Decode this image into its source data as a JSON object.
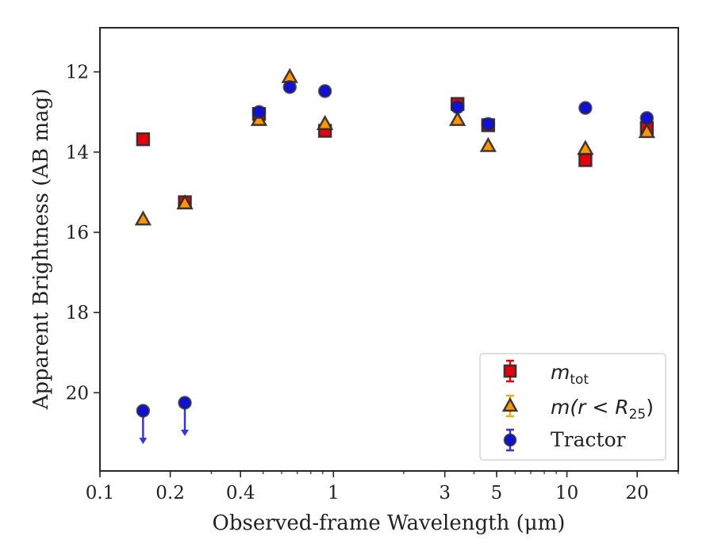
{
  "chart_data": {
    "type": "scatter",
    "xscale": "log",
    "xlim": [
      0.1,
      30
    ],
    "ylim": [
      21.95,
      10.9
    ],
    "y_inverted": true,
    "xlabel": "Observed-frame Wavelength (μm)",
    "ylabel": "Apparent Brightness (AB mag)",
    "xticks": [
      {
        "value": 0.1,
        "label": "0.1"
      },
      {
        "value": 0.2,
        "label": "0.2"
      },
      {
        "value": 0.4,
        "label": "0.4"
      },
      {
        "value": 1,
        "label": "1"
      },
      {
        "value": 3,
        "label": "3"
      },
      {
        "value": 5,
        "label": "5"
      },
      {
        "value": 10,
        "label": "10"
      },
      {
        "value": 20,
        "label": "20"
      }
    ],
    "yticks": [
      {
        "value": 12,
        "label": "12"
      },
      {
        "value": 14,
        "label": "14"
      },
      {
        "value": 16,
        "label": "16"
      },
      {
        "value": 18,
        "label": "18"
      },
      {
        "value": 20,
        "label": "20"
      }
    ],
    "legend_position": "lower-right",
    "series": [
      {
        "name": "m_tot",
        "legend_label": "m_tot",
        "marker": "square",
        "color": "#e8000b",
        "errorbar_color": "#e8000b",
        "points": [
          {
            "x": 0.153,
            "y": 13.68
          },
          {
            "x": 0.231,
            "y": 15.25
          },
          {
            "x": 0.48,
            "y": 13.05
          },
          {
            "x": 0.92,
            "y": 13.47
          },
          {
            "x": 3.4,
            "y": 12.8
          },
          {
            "x": 4.6,
            "y": 13.33
          },
          {
            "x": 12.0,
            "y": 14.2
          },
          {
            "x": 22.0,
            "y": 13.4
          }
        ]
      },
      {
        "name": "m(r<R25)",
        "legend_label": "m(r < R25)",
        "marker": "triangle",
        "color": "#ff9500",
        "errorbar_color": "#f0b000",
        "points": [
          {
            "x": 0.153,
            "y": 15.68
          },
          {
            "x": 0.231,
            "y": 15.28
          },
          {
            "x": 0.48,
            "y": 13.2
          },
          {
            "x": 0.65,
            "y": 12.13
          },
          {
            "x": 0.92,
            "y": 13.3
          },
          {
            "x": 3.4,
            "y": 13.2
          },
          {
            "x": 4.6,
            "y": 13.85
          },
          {
            "x": 12.0,
            "y": 13.92
          },
          {
            "x": 22.0,
            "y": 13.5
          }
        ]
      },
      {
        "name": "Tractor",
        "legend_label": "Tractor",
        "marker": "circle",
        "color": "#1010dd",
        "errorbar_color": "#3333ee",
        "points": [
          {
            "x": 0.153,
            "y": 20.45,
            "upper_limit": true
          },
          {
            "x": 0.231,
            "y": 20.25,
            "upper_limit": true
          },
          {
            "x": 0.48,
            "y": 13.0
          },
          {
            "x": 0.65,
            "y": 12.38
          },
          {
            "x": 0.92,
            "y": 12.48
          },
          {
            "x": 3.4,
            "y": 12.88
          },
          {
            "x": 4.6,
            "y": 13.3
          },
          {
            "x": 12.0,
            "y": 12.9
          },
          {
            "x": 22.0,
            "y": 13.15
          }
        ]
      }
    ]
  },
  "legend": {
    "tot_m": "m",
    "tot_sub": "tot",
    "r25_prefix": "m(r < R",
    "r25_sub": "25",
    "r25_suffix": ")",
    "tractor": "Tractor"
  }
}
